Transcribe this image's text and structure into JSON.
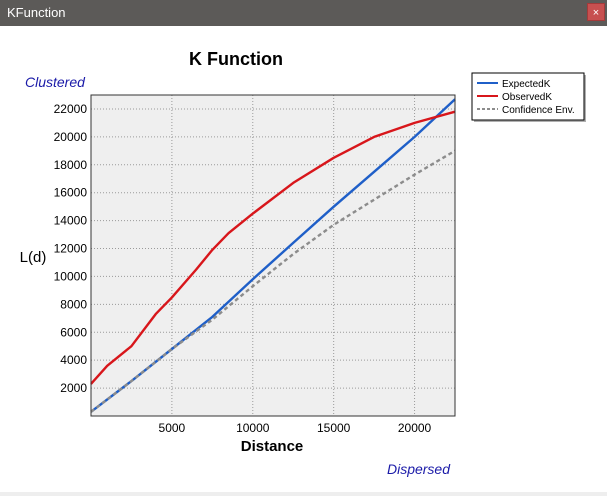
{
  "window": {
    "title": "KFunction",
    "close_label": "×"
  },
  "chart_labels": {
    "clustered": "Clustered",
    "dispersed": "Dispersed"
  },
  "chart_data": {
    "type": "line",
    "title": "K Function",
    "xlabel": "Distance",
    "ylabel": "L(d)",
    "xlim": [
      0,
      22500
    ],
    "ylim": [
      0,
      23000
    ],
    "xticks": [
      5000,
      10000,
      15000,
      20000
    ],
    "yticks": [
      2000,
      4000,
      6000,
      8000,
      10000,
      12000,
      14000,
      16000,
      18000,
      20000,
      22000
    ],
    "grid": true,
    "legend_position": "top-right outside",
    "colors": {
      "ExpectedK": "#1f5fc8",
      "ObservedK": "#d8161b",
      "Confidence Env.": "#8c8c8c"
    },
    "series": [
      {
        "name": "ExpectedK",
        "style": "solid",
        "x": [
          0,
          2500,
          5000,
          7500,
          10000,
          12500,
          15000,
          17500,
          20000,
          22500
        ],
        "y": [
          300,
          2500,
          4800,
          7100,
          9800,
          12400,
          15000,
          17500,
          20000,
          22700
        ]
      },
      {
        "name": "ObservedK",
        "style": "solid",
        "x": [
          0,
          1000,
          2500,
          4000,
          5000,
          6500,
          7500,
          8500,
          10000,
          12500,
          15000,
          17500,
          20000,
          22500
        ],
        "y": [
          2300,
          3600,
          5000,
          7300,
          8500,
          10500,
          11900,
          13100,
          14500,
          16700,
          18500,
          20000,
          21000,
          21800
        ]
      },
      {
        "name": "Confidence Env.",
        "style": "dashed",
        "x": [
          0,
          2500,
          5000,
          7500,
          10000,
          12500,
          15000,
          17500,
          20000,
          22500
        ],
        "y": [
          300,
          2500,
          4800,
          6900,
          9300,
          11600,
          13700,
          15500,
          17300,
          19000
        ]
      }
    ]
  }
}
